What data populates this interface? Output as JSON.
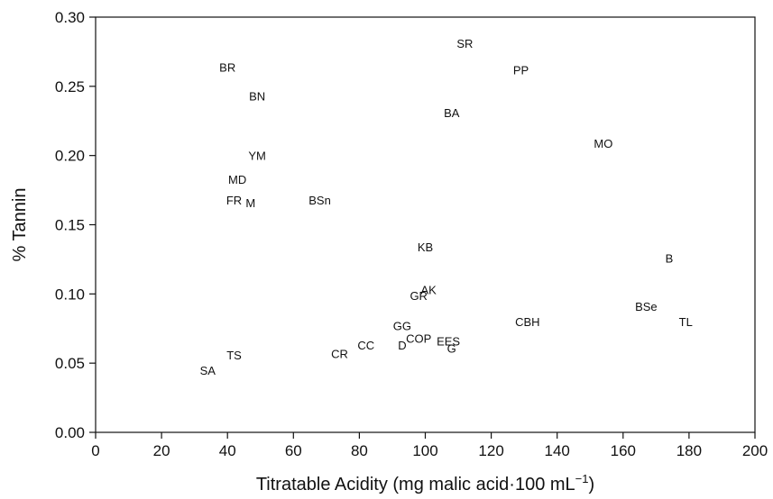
{
  "chart_data": {
    "type": "scatter",
    "xlabel": "Titratable Acidity (mg malic acid·100 mL",
    "xlabel_sup": "−1",
    "xlabel_end": ")",
    "ylabel": "% Tannin",
    "xlim": [
      0,
      200
    ],
    "ylim": [
      0.0,
      0.3
    ],
    "xticks": [
      0,
      20,
      40,
      60,
      80,
      100,
      120,
      140,
      160,
      180,
      200
    ],
    "yticks": [
      0.0,
      0.05,
      0.1,
      0.15,
      0.2,
      0.25,
      0.3
    ],
    "xtick_labels": [
      "0",
      "20",
      "40",
      "60",
      "80",
      "100",
      "120",
      "140",
      "160",
      "180",
      "200"
    ],
    "ytick_labels": [
      "0.00",
      "0.05",
      "0.10",
      "0.15",
      "0.20",
      "0.25",
      "0.30"
    ],
    "grid": false,
    "markers": "text labels only",
    "points": [
      {
        "label": "SR",
        "x": 112,
        "y": 0.281
      },
      {
        "label": "PP",
        "x": 129,
        "y": 0.262
      },
      {
        "label": "BR",
        "x": 40,
        "y": 0.264
      },
      {
        "label": "BN",
        "x": 49,
        "y": 0.243
      },
      {
        "label": "BA",
        "x": 108,
        "y": 0.231
      },
      {
        "label": "MO",
        "x": 154,
        "y": 0.209
      },
      {
        "label": "YM",
        "x": 49,
        "y": 0.2
      },
      {
        "label": "MD",
        "x": 43,
        "y": 0.183
      },
      {
        "label": "BSn",
        "x": 68,
        "y": 0.168
      },
      {
        "label": "FR",
        "x": 42,
        "y": 0.168
      },
      {
        "label": "M",
        "x": 47,
        "y": 0.166
      },
      {
        "label": "KB",
        "x": 100,
        "y": 0.134
      },
      {
        "label": "B",
        "x": 174,
        "y": 0.126
      },
      {
        "label": "AK",
        "x": 101,
        "y": 0.103
      },
      {
        "label": "GR",
        "x": 98,
        "y": 0.099
      },
      {
        "label": "BSe",
        "x": 167,
        "y": 0.091
      },
      {
        "label": "TL",
        "x": 179,
        "y": 0.08
      },
      {
        "label": "CBH",
        "x": 131,
        "y": 0.08
      },
      {
        "label": "GG",
        "x": 93,
        "y": 0.077
      },
      {
        "label": "COP",
        "x": 98,
        "y": 0.068
      },
      {
        "label": "EES",
        "x": 107,
        "y": 0.066
      },
      {
        "label": "D",
        "x": 93,
        "y": 0.063
      },
      {
        "label": "G",
        "x": 108,
        "y": 0.061
      },
      {
        "label": "CC",
        "x": 82,
        "y": 0.063
      },
      {
        "label": "CR",
        "x": 74,
        "y": 0.057
      },
      {
        "label": "TS",
        "x": 42,
        "y": 0.056
      },
      {
        "label": "SA",
        "x": 34,
        "y": 0.045
      }
    ]
  }
}
